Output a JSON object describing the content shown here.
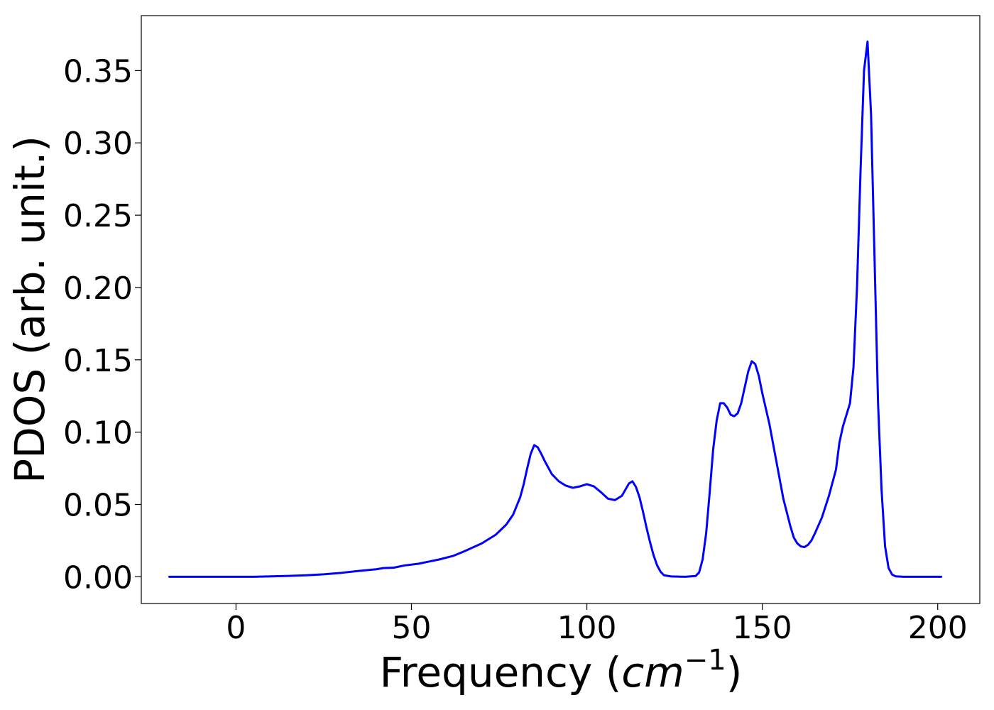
{
  "chart_data": {
    "type": "line",
    "title": "",
    "xlabel_main": "Frequency (",
    "xlabel_math": "cm",
    "xlabel_sup": "−1",
    "xlabel_close": ")",
    "ylabel": "PDOS (arb. unit.)",
    "xlim": [
      -27,
      212
    ],
    "ylim": [
      -0.0185,
      0.388
    ],
    "xticks": [
      0,
      50,
      100,
      150,
      200
    ],
    "xtick_labels": [
      "0",
      "50",
      "100",
      "150",
      "200"
    ],
    "yticks": [
      0.0,
      0.05,
      0.1,
      0.15,
      0.2,
      0.25,
      0.3,
      0.35
    ],
    "ytick_labels": [
      "0.00",
      "0.05",
      "0.10",
      "0.15",
      "0.20",
      "0.25",
      "0.30",
      "0.35"
    ],
    "grid": false,
    "legend": "none",
    "series": [
      {
        "color": "#0000ff",
        "points": [
          [
            -19,
            0.0
          ],
          [
            -10,
            0.0
          ],
          [
            0,
            0.0
          ],
          [
            5,
            0.0
          ],
          [
            10,
            0.0003
          ],
          [
            15,
            0.0006
          ],
          [
            20,
            0.001
          ],
          [
            25,
            0.0017
          ],
          [
            30,
            0.0027
          ],
          [
            35,
            0.004
          ],
          [
            40,
            0.0052
          ],
          [
            42,
            0.006
          ],
          [
            45,
            0.0063
          ],
          [
            48,
            0.0078
          ],
          [
            52,
            0.009
          ],
          [
            55,
            0.0105
          ],
          [
            58,
            0.012
          ],
          [
            62,
            0.0145
          ],
          [
            65,
            0.0175
          ],
          [
            70,
            0.023
          ],
          [
            74,
            0.029
          ],
          [
            77,
            0.036
          ],
          [
            79,
            0.043
          ],
          [
            81,
            0.055
          ],
          [
            82,
            0.064
          ],
          [
            83,
            0.075
          ],
          [
            84,
            0.085
          ],
          [
            85,
            0.091
          ],
          [
            86,
            0.0895
          ],
          [
            87,
            0.085
          ],
          [
            88,
            0.08
          ],
          [
            90,
            0.071
          ],
          [
            92,
            0.066
          ],
          [
            94,
            0.063
          ],
          [
            96,
            0.0615
          ],
          [
            98,
            0.0625
          ],
          [
            100,
            0.064
          ],
          [
            102,
            0.0625
          ],
          [
            104,
            0.0585
          ],
          [
            106,
            0.054
          ],
          [
            108,
            0.053
          ],
          [
            110,
            0.056
          ],
          [
            112,
            0.0645
          ],
          [
            113,
            0.066
          ],
          [
            114,
            0.062
          ],
          [
            115,
            0.055
          ],
          [
            116,
            0.045
          ],
          [
            117,
            0.034
          ],
          [
            118,
            0.024
          ],
          [
            119,
            0.015
          ],
          [
            120,
            0.008
          ],
          [
            121,
            0.0035
          ],
          [
            122,
            0.001
          ],
          [
            124,
            0.0002
          ],
          [
            128,
            0.0
          ],
          [
            131,
            0.0005
          ],
          [
            132,
            0.003
          ],
          [
            133,
            0.012
          ],
          [
            134,
            0.03
          ],
          [
            135,
            0.058
          ],
          [
            136,
            0.088
          ],
          [
            137,
            0.108
          ],
          [
            138,
            0.12
          ],
          [
            139,
            0.12
          ],
          [
            140,
            0.117
          ],
          [
            141,
            0.112
          ],
          [
            142,
            0.111
          ],
          [
            143,
            0.113
          ],
          [
            144,
            0.12
          ],
          [
            145,
            0.131
          ],
          [
            146,
            0.142
          ],
          [
            147,
            0.149
          ],
          [
            148,
            0.147
          ],
          [
            149,
            0.139
          ],
          [
            150,
            0.127
          ],
          [
            152,
            0.106
          ],
          [
            154,
            0.08
          ],
          [
            156,
            0.054
          ],
          [
            158,
            0.035
          ],
          [
            159,
            0.027
          ],
          [
            160,
            0.023
          ],
          [
            161,
            0.021
          ],
          [
            162,
            0.0205
          ],
          [
            163,
            0.022
          ],
          [
            164,
            0.025
          ],
          [
            165,
            0.03
          ],
          [
            167,
            0.041
          ],
          [
            169,
            0.056
          ],
          [
            171,
            0.074
          ],
          [
            172,
            0.093
          ],
          [
            173,
            0.104
          ],
          [
            175,
            0.12
          ],
          [
            176,
            0.145
          ],
          [
            177,
            0.2
          ],
          [
            178,
            0.28
          ],
          [
            179,
            0.35
          ],
          [
            180,
            0.37
          ],
          [
            181,
            0.32
          ],
          [
            182,
            0.22
          ],
          [
            183,
            0.12
          ],
          [
            184,
            0.06
          ],
          [
            185,
            0.021
          ],
          [
            186,
            0.006
          ],
          [
            187,
            0.0015
          ],
          [
            188,
            0.0003
          ],
          [
            190,
            0.0
          ],
          [
            200,
            0.0
          ],
          [
            201,
            0.0
          ]
        ]
      }
    ]
  }
}
